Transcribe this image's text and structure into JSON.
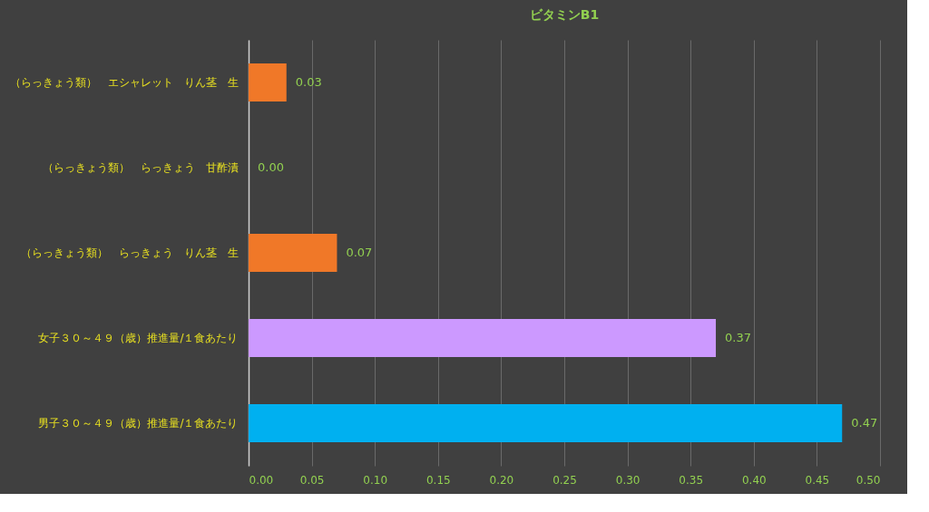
{
  "chart_data": {
    "type": "bar",
    "orientation": "horizontal",
    "title": "ビタミンB1",
    "categories": [
      "（らっきょう類）　エシャレット　りん茎　生",
      "（らっきょう類）　らっきょう　甘酢漬",
      "（らっきょう類）　らっきょう　りん茎　生",
      "女子３０～４９（歳）推進量/１食あたり",
      "男子３０～４９（歳）推進量/１食あたり"
    ],
    "values": [
      0.03,
      0.0,
      0.07,
      0.37,
      0.47
    ],
    "value_labels": [
      "0.03",
      "0.00",
      "0.07",
      "0.37",
      "0.47"
    ],
    "colors": [
      "#f07828",
      "#f07828",
      "#f07828",
      "#cc99ff",
      "#00b0f0"
    ],
    "xlim": [
      0,
      0.5
    ],
    "xticks": [
      {
        "value": 0,
        "label": "0.00"
      },
      {
        "value": 0.05,
        "label": "0.05"
      },
      {
        "value": 0.1,
        "label": "0.10"
      },
      {
        "value": 0.15,
        "label": "0.15"
      },
      {
        "value": 0.2,
        "label": "0.20"
      },
      {
        "value": 0.25,
        "label": "0.25"
      },
      {
        "value": 0.3,
        "label": "0.30"
      },
      {
        "value": 0.35,
        "label": "0.35"
      },
      {
        "value": 0.4,
        "label": "0.40"
      },
      {
        "value": 0.45,
        "label": "0.45"
      },
      {
        "value": 0.5,
        "label": "0.50"
      }
    ],
    "grid": "x",
    "legend": false
  }
}
